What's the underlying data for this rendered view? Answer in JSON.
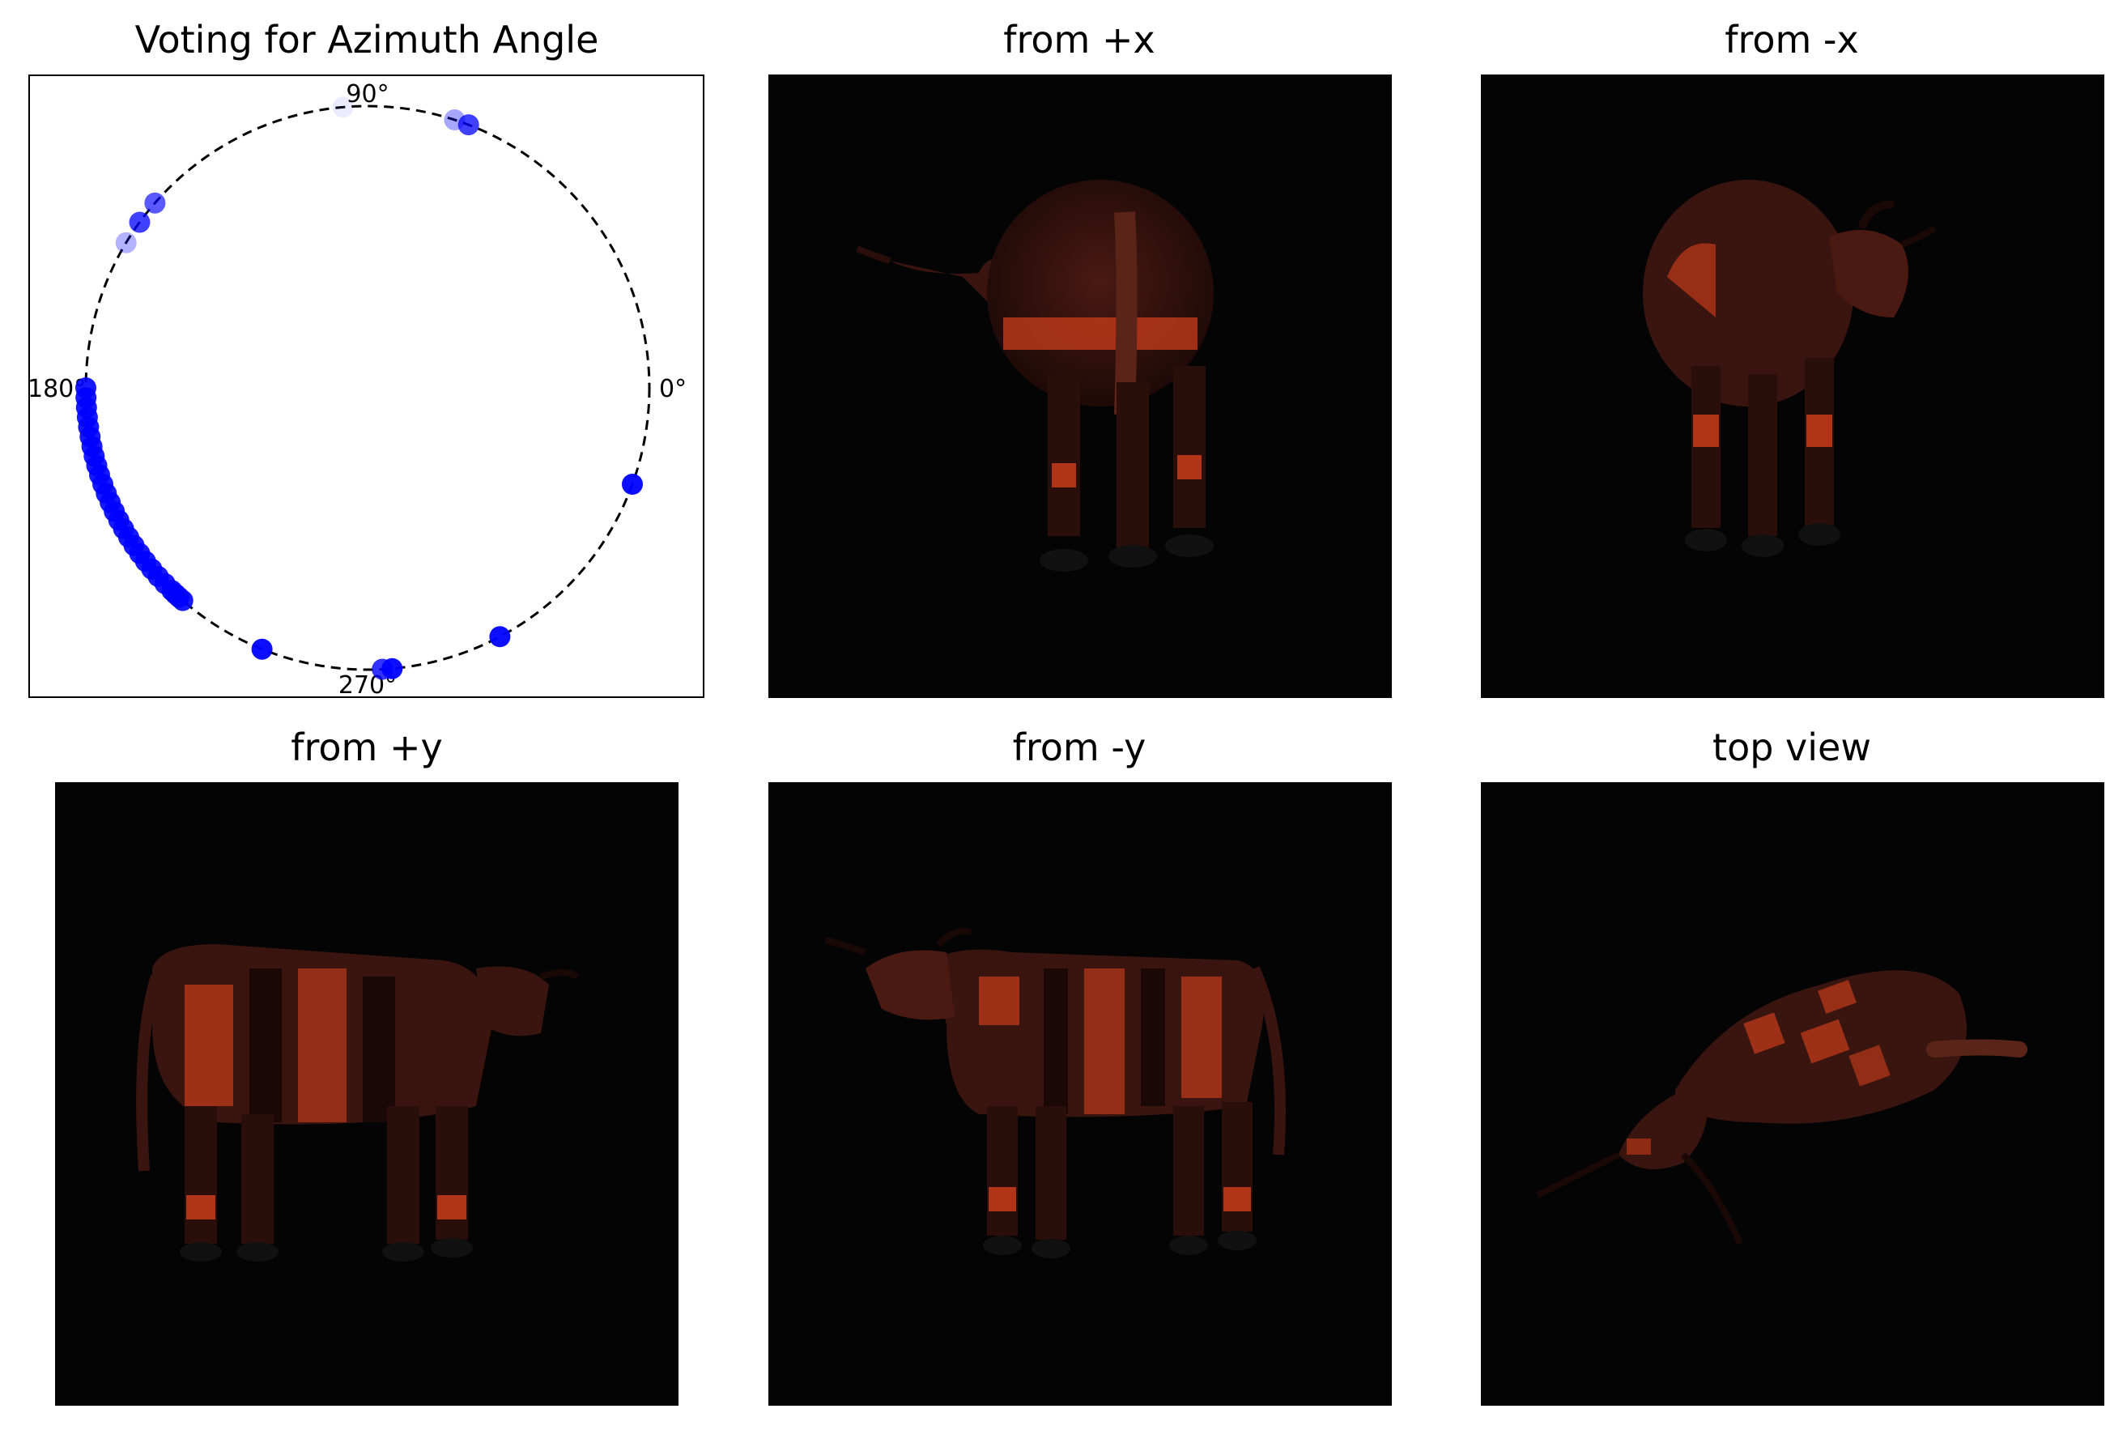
{
  "panels": {
    "polar_title": "Voting for Azimuth Angle",
    "view_titles": [
      "from +x",
      "from -x",
      "from +y",
      "from -y",
      "top view"
    ]
  },
  "chart_data": {
    "type": "scatter",
    "title": "Voting for Azimuth Angle",
    "coordinate_system": "polar (unit circle, angle in degrees)",
    "angle_tick_labels": [
      "0°",
      "90°",
      "180°",
      "270°"
    ],
    "radius": 1.0,
    "circle_style": "dashed black",
    "marker_color": "#0000ff",
    "grid": false,
    "points": [
      {
        "angle": 95,
        "alpha": 0.08
      },
      {
        "angle": 72,
        "alpha": 0.35
      },
      {
        "angle": 69,
        "alpha": 0.75
      },
      {
        "angle": 139,
        "alpha": 0.65
      },
      {
        "angle": 144,
        "alpha": 0.75
      },
      {
        "angle": 149,
        "alpha": 0.3
      },
      {
        "angle": 180,
        "alpha": 0.9
      },
      {
        "angle": 182,
        "alpha": 0.9
      },
      {
        "angle": 184,
        "alpha": 0.9
      },
      {
        "angle": 186,
        "alpha": 0.9
      },
      {
        "angle": 188,
        "alpha": 0.9
      },
      {
        "angle": 190,
        "alpha": 0.9
      },
      {
        "angle": 192,
        "alpha": 0.9
      },
      {
        "angle": 194,
        "alpha": 0.9
      },
      {
        "angle": 196,
        "alpha": 0.9
      },
      {
        "angle": 198,
        "alpha": 0.9
      },
      {
        "angle": 200,
        "alpha": 0.9
      },
      {
        "angle": 202,
        "alpha": 0.9
      },
      {
        "angle": 204,
        "alpha": 0.9
      },
      {
        "angle": 206,
        "alpha": 0.9
      },
      {
        "angle": 208,
        "alpha": 0.9
      },
      {
        "angle": 210,
        "alpha": 0.9
      },
      {
        "angle": 212,
        "alpha": 0.9
      },
      {
        "angle": 214,
        "alpha": 0.9
      },
      {
        "angle": 216,
        "alpha": 0.9
      },
      {
        "angle": 218,
        "alpha": 0.9
      },
      {
        "angle": 220,
        "alpha": 0.9
      },
      {
        "angle": 222,
        "alpha": 0.9
      },
      {
        "angle": 224,
        "alpha": 0.9
      },
      {
        "angle": 226,
        "alpha": 0.9
      },
      {
        "angle": 227,
        "alpha": 0.9
      },
      {
        "angle": 228,
        "alpha": 0.9
      },
      {
        "angle": 229,
        "alpha": 0.9
      },
      {
        "angle": 248,
        "alpha": 0.95
      },
      {
        "angle": 273,
        "alpha": 0.8
      },
      {
        "angle": 275,
        "alpha": 0.95
      },
      {
        "angle": 298,
        "alpha": 0.95
      },
      {
        "angle": 340,
        "alpha": 0.95
      }
    ]
  }
}
